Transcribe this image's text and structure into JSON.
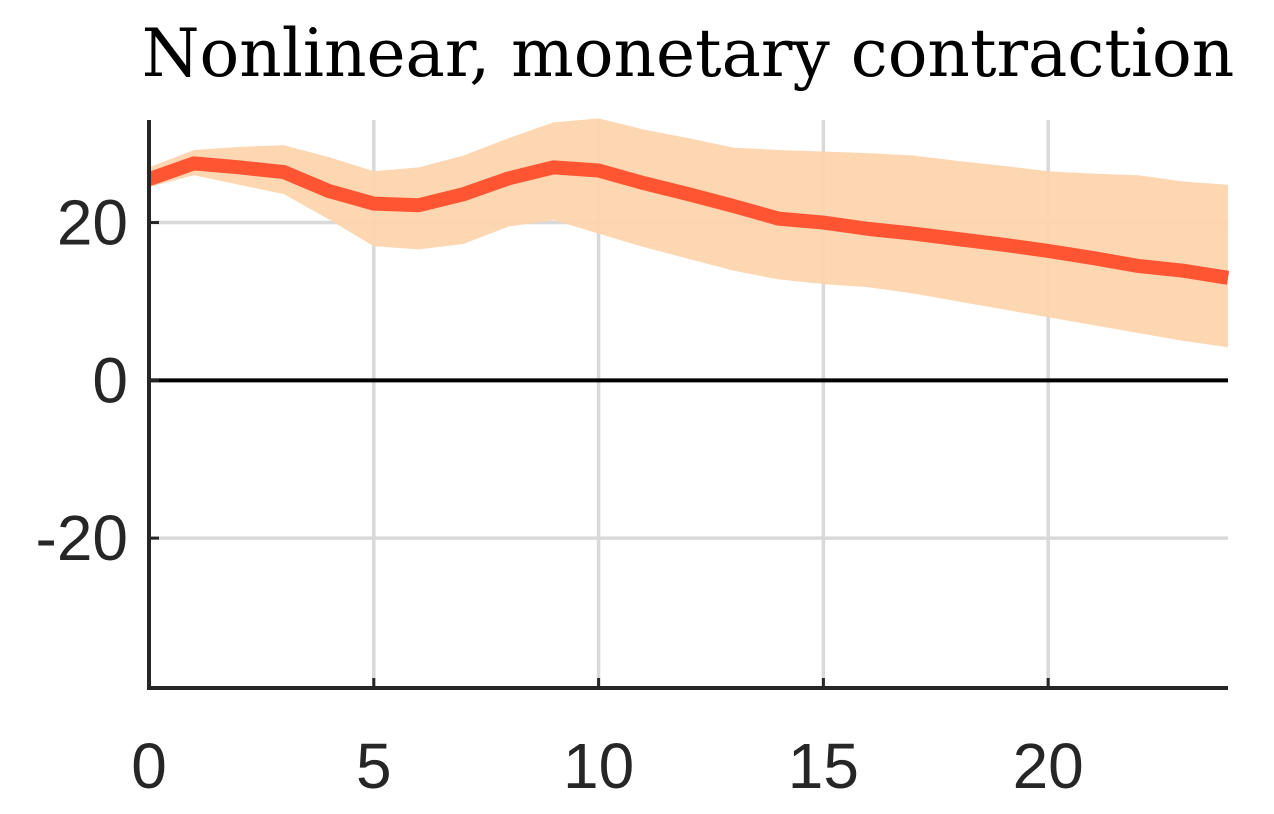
{
  "chart_data": {
    "type": "line",
    "title": "Nonlinear, monetary contraction",
    "xlabel": "",
    "ylabel": "",
    "xlim": [
      0,
      24
    ],
    "ylim": [
      -39,
      33
    ],
    "xticks": [
      0,
      5,
      10,
      15,
      20
    ],
    "yticks": [
      -20,
      0,
      20
    ],
    "xtick_labels": [
      "0",
      "5",
      "10",
      "15",
      "20"
    ],
    "ytick_labels": [
      "-20",
      "0",
      "20"
    ],
    "grid": true,
    "zero_line": true,
    "x": [
      0,
      1,
      2,
      3,
      4,
      5,
      6,
      7,
      8,
      9,
      10,
      11,
      12,
      13,
      14,
      15,
      16,
      17,
      18,
      19,
      20,
      21,
      22,
      23,
      24
    ],
    "series": [
      {
        "type": "line",
        "values": [
          25.5,
          27.5,
          27,
          26.4,
          24,
          22.4,
          22.2,
          23.6,
          25.6,
          27,
          26.6,
          25,
          23.6,
          22.1,
          20.5,
          20,
          19.2,
          18.6,
          17.9,
          17.2,
          16.4,
          15.5,
          14.5,
          13.9,
          13.0
        ]
      }
    ],
    "band": {
      "upper": [
        27,
        29.2,
        29.6,
        29.8,
        28.3,
        26.5,
        27,
        28.5,
        30.7,
        32.7,
        33.2,
        31.8,
        30.7,
        29.5,
        29.2,
        29.0,
        28.8,
        28.5,
        27.8,
        27.2,
        26.5,
        26.2,
        26,
        25.2,
        24.8
      ],
      "lower": [
        24.5,
        26,
        24.8,
        23.6,
        20.4,
        17,
        16.6,
        17.3,
        19.5,
        20.3,
        18.6,
        16.9,
        15.4,
        13.9,
        12.8,
        12.2,
        11.8,
        11,
        10,
        9,
        8,
        7,
        6,
        5,
        4.2
      ]
    },
    "colors": {
      "line": "#ff5533",
      "band": "#fdd5ae",
      "zero_line": "#000000",
      "grid": "#d9d9d9",
      "axis": "#262626"
    }
  }
}
